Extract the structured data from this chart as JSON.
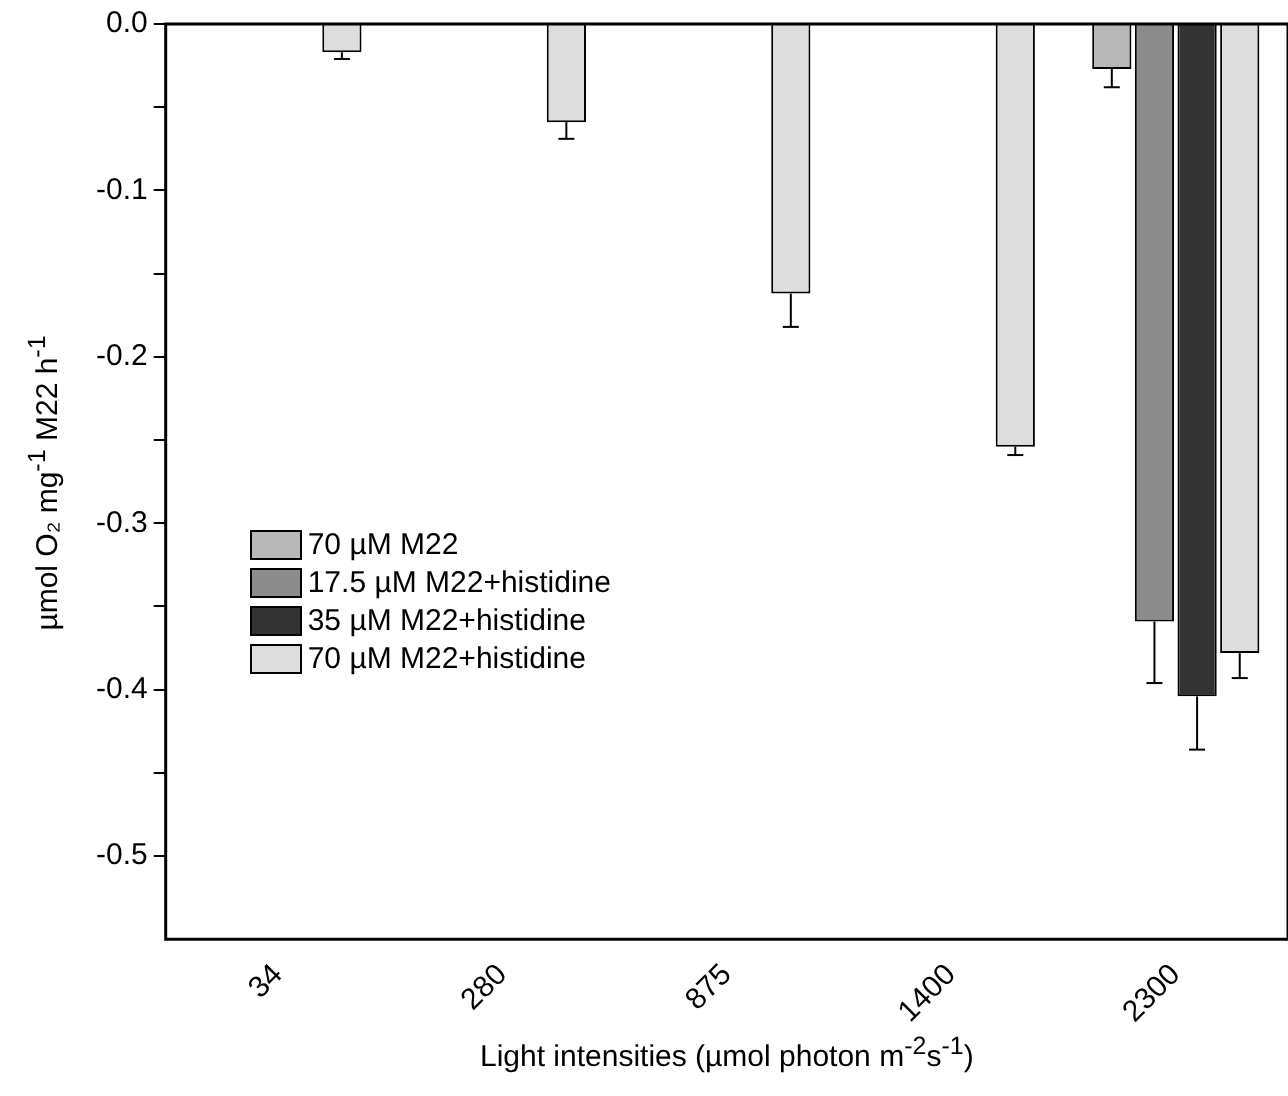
{
  "chart_data": {
    "type": "bar",
    "xlabel": "Light intensities (µmol photon m$^{-2}$s$^{-1}$)",
    "ylabel": "µmol O₂ mg$^{-1}$ M22 h$^{-1}$",
    "categories": [
      "34",
      "280",
      "875",
      "1400",
      "2300"
    ],
    "series": [
      {
        "name": "70 µM M22",
        "color": "#b8b8b8",
        "values": [
          null,
          null,
          null,
          null,
          -0.027
        ],
        "errors": [
          null,
          null,
          null,
          null,
          [
            -0.038,
            -0.027
          ]
        ]
      },
      {
        "name": "17.5 µM M22+histidine",
        "color": "#8c8c8c",
        "values": [
          null,
          null,
          null,
          null,
          -0.359
        ],
        "errors": [
          null,
          null,
          null,
          null,
          [
            -0.396,
            -0.359
          ]
        ]
      },
      {
        "name": "35 µM M22+histidine",
        "color": "#333333",
        "values": [
          null,
          null,
          null,
          null,
          -0.404
        ],
        "errors": [
          null,
          null,
          null,
          null,
          [
            -0.436,
            -0.404
          ]
        ]
      },
      {
        "name": "70 µM M22+histidine",
        "color": "#dddddd",
        "values": [
          -0.017,
          -0.059,
          -0.162,
          -0.254,
          -0.378
        ],
        "errors": [
          [
            -0.021,
            -0.017
          ],
          [
            -0.069,
            -0.059
          ],
          [
            -0.182,
            -0.162
          ],
          [
            -0.259,
            -0.254
          ],
          [
            -0.393,
            -0.378
          ]
        ]
      }
    ],
    "ylim": [
      -0.55,
      0
    ],
    "yticks": [
      {
        "value": 0,
        "label": "0.0"
      },
      {
        "value": -0.05,
        "label": null
      },
      -0.1,
      {
        "value": -0.15,
        "label": null
      },
      -0.2,
      {
        "value": -0.25,
        "label": null
      },
      -0.3,
      {
        "value": -0.35,
        "label": null
      },
      -0.4,
      {
        "value": -0.45,
        "label": null
      },
      -0.5
    ],
    "grid": false,
    "legend": "left"
  }
}
